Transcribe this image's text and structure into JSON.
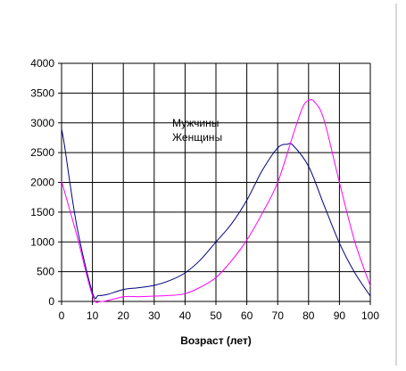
{
  "chart_data": {
    "type": "line",
    "title": "",
    "xlabel": "Возраст (лет)",
    "ylabel": "",
    "xlim": [
      0,
      100
    ],
    "ylim": [
      0,
      4000
    ],
    "x_ticks": [
      0,
      10,
      20,
      30,
      40,
      50,
      60,
      70,
      80,
      90,
      100
    ],
    "y_ticks": [
      0,
      500,
      1000,
      1500,
      2000,
      2500,
      3000,
      3500,
      4000
    ],
    "grid": true,
    "legend_position": "center",
    "series": [
      {
        "name": "Мужчины",
        "color": "#000080",
        "x": [
          0,
          1,
          5,
          10,
          12,
          15,
          20,
          25,
          30,
          35,
          40,
          45,
          50,
          55,
          60,
          65,
          70,
          73,
          75,
          80,
          85,
          90,
          95,
          100
        ],
        "y": [
          2900,
          2600,
          1250,
          150,
          100,
          120,
          200,
          230,
          270,
          350,
          480,
          700,
          1000,
          1300,
          1700,
          2200,
          2580,
          2640,
          2620,
          2270,
          1620,
          980,
          480,
          90
        ]
      },
      {
        "name": "Женщины",
        "color": "#ff00ff",
        "x": [
          0,
          5,
          10,
          13,
          20,
          25,
          30,
          35,
          40,
          45,
          50,
          55,
          60,
          65,
          70,
          75,
          78,
          80,
          82,
          85,
          90,
          95,
          100
        ],
        "y": [
          2020,
          1100,
          100,
          0,
          80,
          80,
          90,
          100,
          130,
          240,
          400,
          680,
          1030,
          1480,
          2000,
          2800,
          3250,
          3380,
          3350,
          3050,
          2000,
          1000,
          260
        ]
      }
    ]
  }
}
